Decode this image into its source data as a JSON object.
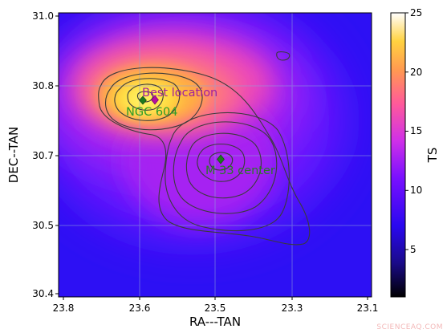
{
  "chart_data": {
    "type": "heatmap",
    "title": "",
    "xlabel": "RA---TAN",
    "ylabel": "DEC--TAN",
    "x_ticks": [
      "23.8",
      "23.6",
      "23.5",
      "23.3",
      "23.1"
    ],
    "y_ticks": [
      "31.0",
      "30.8",
      "30.7",
      "30.5",
      "30.4"
    ],
    "grid": true,
    "colorbar": {
      "label": "TS",
      "range": [
        1,
        25
      ],
      "ticks": [
        "5",
        "10",
        "15",
        "20",
        "25"
      ],
      "colormap": "gnuplot2"
    },
    "annotations": [
      {
        "text": "Best location",
        "color": "#a0219e",
        "marker_color": "#b5119e"
      },
      {
        "text": "NGC 604",
        "color": "#2c9c28",
        "marker_color": "#1e7a1e"
      },
      {
        "text": "M 33 center",
        "color": "#2a7a25",
        "marker_color": "#1e7a1e"
      }
    ],
    "contour_color": "#3b3b3b"
  },
  "watermark": "SCIENCEAQ.COM"
}
